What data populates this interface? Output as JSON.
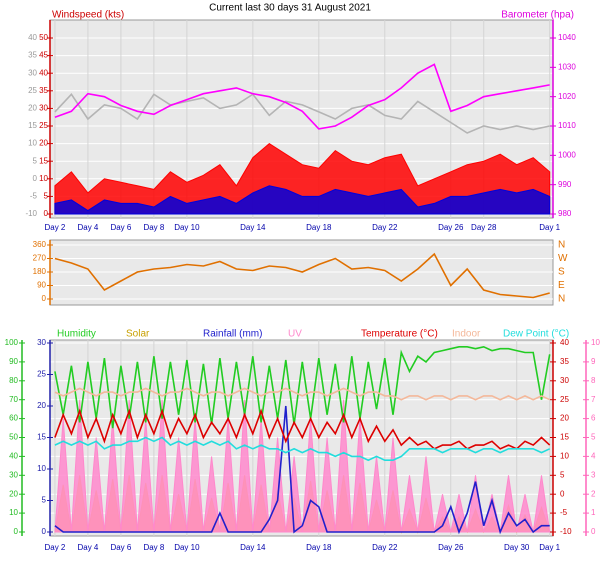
{
  "chart_data": [
    {
      "type": "line",
      "title": "Current last 30 days 31 August 2021",
      "ylabel": "Windspeed (kts)",
      "y2label": "Barometer (hpa)",
      "x": [
        0,
        1,
        2,
        3,
        4,
        5,
        6,
        7,
        8,
        9,
        10,
        11,
        12,
        13,
        14,
        15,
        16,
        17,
        18,
        19,
        20,
        21,
        22,
        23,
        24,
        25,
        26,
        27,
        28,
        29,
        30
      ],
      "xlim": [
        -0.3,
        30.2
      ],
      "xticks": [
        {
          "value": 0,
          "label": "Day 2"
        },
        {
          "value": 2,
          "label": "Day 4"
        },
        {
          "value": 4,
          "label": "Day 6"
        },
        {
          "value": 6,
          "label": "Day 8"
        },
        {
          "value": 8,
          "label": "Day 10"
        },
        {
          "value": 12,
          "label": "Day 14"
        },
        {
          "value": 16,
          "label": "Day 18"
        },
        {
          "value": 20,
          "label": "Day 22"
        },
        {
          "value": 24,
          "label": "Day 26"
        },
        {
          "value": 26,
          "label": "Day 28"
        },
        {
          "value": 30,
          "label": "Day 1"
        }
      ],
      "ylim": [
        0,
        50
      ],
      "yticks": [
        0,
        5,
        10,
        15,
        20,
        25,
        30,
        35,
        40,
        45,
        50
      ],
      "y3lim": [
        -10,
        40
      ],
      "y3ticks": [
        -10,
        -5,
        0,
        5,
        10,
        15,
        20,
        25,
        30,
        35,
        40
      ],
      "y2lim": [
        980,
        1040
      ],
      "y2ticks": [
        980,
        990,
        1000,
        1010,
        1020,
        1030,
        1040
      ],
      "grid": true,
      "series": [
        {
          "color": "#ff0000",
          "fill": true,
          "values": [
            8,
            12,
            6,
            10,
            9,
            8,
            7,
            12,
            9,
            11,
            14,
            8,
            16,
            20,
            17,
            14,
            13,
            18,
            15,
            14,
            16,
            17,
            8,
            10,
            12,
            14,
            15,
            17,
            14,
            16,
            12
          ]
        },
        {
          "color": "#0000dd",
          "fill": true,
          "values": [
            3,
            4,
            1,
            4,
            3,
            3,
            2,
            5,
            3,
            4,
            5,
            3,
            6,
            8,
            7,
            5,
            5,
            7,
            6,
            5,
            6,
            7,
            2,
            3,
            5,
            5,
            6,
            7,
            6,
            7,
            5
          ]
        },
        {
          "color": "#b4b4b4",
          "axis": "y3",
          "values": [
            19,
            24,
            17,
            21,
            20,
            17,
            24,
            21,
            22,
            23,
            20,
            21,
            24,
            18,
            22,
            21,
            19,
            17,
            20,
            21,
            18,
            17,
            22,
            19,
            16,
            13,
            15,
            14,
            15,
            14,
            15
          ]
        },
        {
          "color": "#ff00ff",
          "axis": "y2",
          "values": [
            1013,
            1015,
            1021,
            1020,
            1017,
            1015,
            1014,
            1017,
            1019,
            1021,
            1022,
            1023,
            1021,
            1020,
            1018,
            1015,
            1009,
            1010,
            1013,
            1017,
            1019,
            1023,
            1028,
            1031,
            1015,
            1017,
            1020,
            1021,
            1022,
            1023,
            1024
          ]
        }
      ]
    },
    {
      "type": "line",
      "x": [
        0,
        1,
        2,
        3,
        4,
        5,
        6,
        7,
        8,
        9,
        10,
        11,
        12,
        13,
        14,
        15,
        16,
        17,
        18,
        19,
        20,
        21,
        22,
        23,
        24,
        25,
        26,
        27,
        28,
        29,
        30
      ],
      "xlim": [
        -0.3,
        30.2
      ],
      "ylim": [
        0,
        360
      ],
      "yticks": [
        0,
        90,
        180,
        270,
        360
      ],
      "y2lim": [
        0,
        360
      ],
      "y2ticks": [
        {
          "value": 0,
          "label": "N"
        },
        {
          "value": 90,
          "label": "E"
        },
        {
          "value": 180,
          "label": "S"
        },
        {
          "value": 270,
          "label": "W"
        },
        {
          "value": 360,
          "label": "N"
        }
      ],
      "grid": true,
      "series": [
        {
          "color": "#e07000",
          "values": [
            270,
            240,
            200,
            60,
            120,
            180,
            200,
            210,
            230,
            220,
            250,
            200,
            190,
            220,
            210,
            180,
            230,
            270,
            200,
            210,
            190,
            120,
            200,
            300,
            90,
            200,
            60,
            30,
            20,
            10,
            40
          ]
        }
      ]
    },
    {
      "type": "line",
      "x": [
        0,
        0.5,
        1,
        1.5,
        2,
        2.5,
        3,
        3.5,
        4,
        4.5,
        5,
        5.5,
        6,
        6.5,
        7,
        7.5,
        8,
        8.5,
        9,
        9.5,
        10,
        10.5,
        11,
        11.5,
        12,
        12.5,
        13,
        13.5,
        14,
        14.5,
        15,
        15.5,
        16,
        16.5,
        17,
        17.5,
        18,
        18.5,
        19,
        19.5,
        20,
        20.5,
        21,
        21.5,
        22,
        22.5,
        23,
        23.5,
        24,
        24.5,
        25,
        25.5,
        26,
        26.5,
        27,
        27.5,
        28,
        28.5,
        29,
        29.5,
        30
      ],
      "xlim": [
        -0.3,
        30.2
      ],
      "xticks": [
        {
          "value": 0,
          "label": "Day 2"
        },
        {
          "value": 2,
          "label": "Day 4"
        },
        {
          "value": 4,
          "label": "Day 6"
        },
        {
          "value": 6,
          "label": "Day 8"
        },
        {
          "value": 8,
          "label": "Day 10"
        },
        {
          "value": 12,
          "label": "Day 14"
        },
        {
          "value": 16,
          "label": "Day 18"
        },
        {
          "value": 20,
          "label": "Day 22"
        },
        {
          "value": 24,
          "label": "Day 26"
        },
        {
          "value": 28,
          "label": "Day 30"
        },
        {
          "value": 30,
          "label": "Day 1"
        }
      ],
      "ylim": [
        0,
        100
      ],
      "yticks": [
        0,
        10,
        20,
        30,
        40,
        50,
        60,
        70,
        80,
        90,
        100
      ],
      "y3lim": [
        0,
        30
      ],
      "y3ticks": [
        0,
        5,
        10,
        15,
        20,
        25,
        30
      ],
      "y2lim": [
        -10,
        40
      ],
      "y2ticks": [
        -10,
        -5,
        0,
        5,
        10,
        15,
        20,
        25,
        30,
        35,
        40
      ],
      "y4lim": [
        0,
        10
      ],
      "y4ticks": [
        0,
        1,
        2,
        3,
        4,
        5,
        6,
        7,
        8,
        9,
        10
      ],
      "grid": true,
      "series": [
        {
          "name": "Humidity",
          "color": "#22cc22",
          "values": [
            85,
            62,
            88,
            58,
            90,
            60,
            92,
            55,
            88,
            60,
            90,
            58,
            93,
            60,
            90,
            62,
            91,
            58,
            89,
            57,
            92,
            60,
            90,
            62,
            93,
            58,
            88,
            60,
            91,
            57,
            90,
            60,
            92,
            62,
            89,
            58,
            93,
            60,
            90,
            65,
            92,
            62,
            95,
            85,
            93,
            90,
            95,
            96,
            97,
            98,
            98,
            97,
            98,
            96,
            97,
            97,
            96,
            95,
            95,
            70,
            94
          ]
        },
        {
          "name": "Solar",
          "color": "#f5c040",
          "fill": true,
          "values": [
            0,
            25,
            0,
            30,
            0,
            22,
            0,
            28,
            0,
            30,
            0,
            26,
            0,
            30,
            0,
            20,
            0,
            28,
            0,
            18,
            0,
            26,
            0,
            30,
            0,
            25,
            0,
            22,
            0,
            18,
            0,
            27,
            0,
            22,
            0,
            30,
            0,
            26,
            0,
            17,
            0,
            22,
            0,
            12,
            0,
            18,
            0,
            8,
            0,
            8,
            0,
            12,
            0,
            8,
            0,
            14,
            0,
            9,
            0,
            13,
            0
          ]
        },
        {
          "name": "Rainfall (mm)",
          "color": "#2020cc",
          "axis": "y3",
          "values": [
            1,
            0,
            0,
            0,
            0,
            0,
            0,
            0,
            0,
            0,
            0,
            0,
            0,
            0,
            0,
            0,
            0,
            0,
            0,
            0,
            3,
            0,
            0,
            0,
            0,
            0,
            2,
            5,
            20,
            0,
            1,
            5,
            4,
            0,
            0,
            0,
            0,
            0,
            0,
            0,
            0,
            0,
            0,
            0,
            0,
            0,
            0,
            1,
            4,
            0,
            3,
            8,
            1,
            5,
            0,
            3,
            1,
            2,
            0,
            1,
            1
          ]
        },
        {
          "name": "UV",
          "color": "#ff88cc",
          "fill": true,
          "axis": "y4",
          "values": [
            0,
            6,
            0,
            7,
            0,
            5,
            0,
            6,
            0,
            7,
            0,
            6,
            0,
            7,
            0,
            5,
            0,
            6,
            0,
            4,
            0,
            6,
            0,
            7,
            0,
            6,
            0,
            5,
            0,
            4,
            0,
            6,
            0,
            5,
            0,
            7,
            0,
            6,
            0,
            4,
            0,
            5,
            0,
            3,
            0,
            4,
            0,
            2,
            0,
            2,
            0,
            3,
            0,
            2,
            0,
            3,
            0,
            2,
            0,
            3,
            0
          ]
        },
        {
          "name": "Temperature (°C)",
          "color": "#dd0000",
          "axis": "y2",
          "values": [
            15,
            21,
            16,
            22,
            15,
            20,
            14,
            21,
            16,
            22,
            15,
            21,
            16,
            22,
            15,
            20,
            16,
            21,
            15,
            19,
            16,
            20,
            15,
            21,
            16,
            22,
            15,
            20,
            14,
            19,
            15,
            20,
            15,
            19,
            16,
            21,
            15,
            20,
            14,
            18,
            14,
            17,
            13,
            15,
            13,
            14,
            12,
            13,
            13,
            14,
            12,
            13,
            13,
            14,
            12,
            13,
            12,
            14,
            13,
            15,
            13
          ]
        },
        {
          "name": "Indoor",
          "color": "#f4b89a",
          "axis": "y2",
          "values": [
            27,
            26,
            27,
            28,
            27,
            26,
            27,
            27,
            26,
            27,
            27,
            28,
            27,
            26,
            27,
            27,
            28,
            27,
            26,
            27,
            27,
            26,
            27,
            28,
            27,
            26,
            27,
            27,
            28,
            27,
            26,
            27,
            27,
            26,
            27,
            28,
            27,
            26,
            27,
            27,
            26,
            26,
            25,
            26,
            26,
            25,
            26,
            26,
            25,
            26,
            26,
            25,
            26,
            26,
            25,
            26,
            25,
            26,
            25,
            26,
            25
          ]
        },
        {
          "name": "Dew Point (°C)",
          "color": "#22dddd",
          "axis": "y2",
          "values": [
            13,
            14,
            13,
            14,
            13,
            14,
            12,
            13,
            13,
            14,
            14,
            15,
            14,
            15,
            13,
            14,
            13,
            14,
            13,
            14,
            13,
            14,
            12,
            13,
            12,
            13,
            12,
            12,
            11,
            12,
            11,
            12,
            11,
            11,
            10,
            11,
            10,
            10,
            9,
            10,
            9,
            9,
            10,
            12,
            12,
            12,
            12,
            11,
            12,
            12,
            12,
            11,
            12,
            12,
            11,
            12,
            12,
            12,
            12,
            11,
            12
          ]
        }
      ]
    }
  ]
}
